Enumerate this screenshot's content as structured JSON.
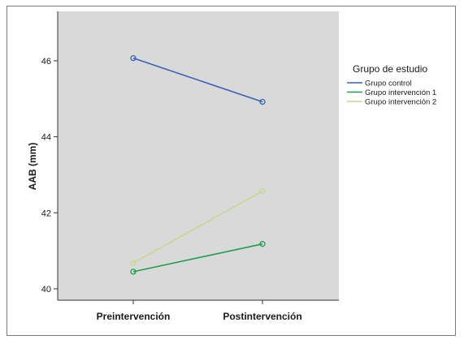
{
  "chart_data": {
    "type": "line",
    "categories": [
      "Preintervención",
      "Postintervención"
    ],
    "ylabel": "AAB (mm)",
    "xlabel": "",
    "ylim": [
      39.7,
      47.3
    ],
    "yticks": [
      40,
      42,
      44,
      46
    ],
    "grid": false,
    "legend": {
      "title": "Grupo de estudio",
      "placement": "right"
    },
    "plot_background": "#d9d9d9",
    "series": [
      {
        "name": "Grupo control",
        "values": [
          46.07,
          44.92
        ],
        "color": "#3a62b5"
      },
      {
        "name": "Grupo intervención 1",
        "values": [
          40.45,
          41.18
        ],
        "color": "#1e9e4a"
      },
      {
        "name": "Grupo intervención 2",
        "values": [
          40.68,
          42.57
        ],
        "color": "#c4d98e"
      }
    ]
  }
}
